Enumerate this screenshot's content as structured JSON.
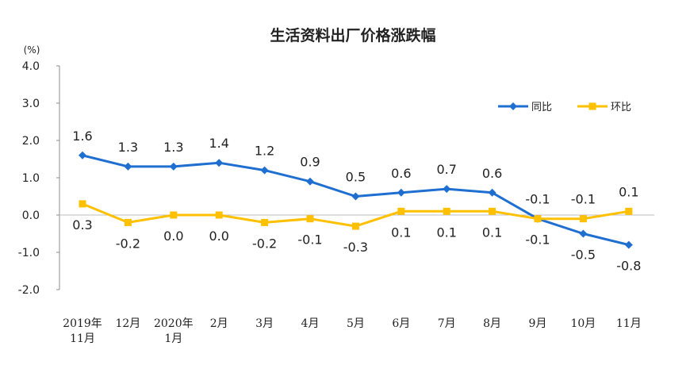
{
  "chart_data": {
    "type": "line",
    "title": "生活资料出厂价格涨跌幅",
    "unit_label": "(%)",
    "ylim": [
      -2.0,
      4.0
    ],
    "yticks": [
      "4.0",
      "3.0",
      "2.0",
      "1.0",
      "0.0",
      "-1.0",
      "-2.0"
    ],
    "ytick_values": [
      4,
      3,
      2,
      1,
      0,
      -1,
      -2
    ],
    "categories": [
      [
        "2019年",
        "11月"
      ],
      [
        "12月"
      ],
      [
        "2020年",
        "1月"
      ],
      [
        "2月"
      ],
      [
        "3月"
      ],
      [
        "4月"
      ],
      [
        "5月"
      ],
      [
        "6月"
      ],
      [
        "7月"
      ],
      [
        "8月"
      ],
      [
        "9月"
      ],
      [
        "10月"
      ],
      [
        "11月"
      ]
    ],
    "series": [
      {
        "name": "同比",
        "color": "#1f6fd1",
        "values": [
          1.6,
          1.3,
          1.3,
          1.4,
          1.2,
          0.9,
          0.5,
          0.6,
          0.7,
          0.6,
          -0.1,
          -0.5,
          -0.8
        ],
        "labels": [
          "1.6",
          "1.3",
          "1.3",
          "1.4",
          "1.2",
          "0.9",
          "0.5",
          "0.6",
          "0.7",
          "0.6",
          "-0.1",
          "-0.5",
          "-0.8"
        ],
        "label_side": [
          "above",
          "above",
          "above",
          "above",
          "above",
          "above",
          "above",
          "above",
          "above",
          "above",
          "above",
          "below",
          "below"
        ]
      },
      {
        "name": "环比",
        "color": "#ffc000",
        "values": [
          0.3,
          -0.2,
          0.0,
          0.0,
          -0.2,
          -0.1,
          -0.3,
          0.1,
          0.1,
          0.1,
          -0.1,
          -0.1,
          0.1
        ],
        "labels": [
          "0.3",
          "-0.2",
          "0.0",
          "0.0",
          "-0.2",
          "-0.1",
          "-0.3",
          "0.1",
          "0.1",
          "0.1",
          "-0.1",
          "-0.1",
          "0.1"
        ],
        "label_side": [
          "below",
          "below",
          "below",
          "below",
          "below",
          "below",
          "below",
          "below",
          "below",
          "below",
          "below",
          "above",
          "above"
        ]
      }
    ],
    "legend_position": "top-right"
  }
}
